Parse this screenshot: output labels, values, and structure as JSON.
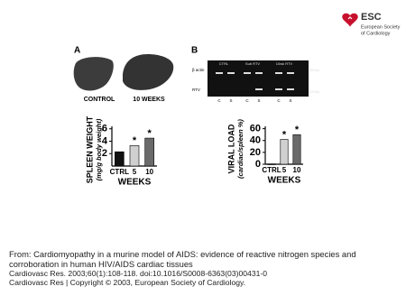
{
  "logo": {
    "abbr": "ESC",
    "line1": "European Society",
    "line2": "of Cardiology"
  },
  "figure": {
    "panel_a": {
      "letter": "A",
      "label_left": "CONTROL",
      "label_right": "10 WEEKS"
    },
    "panel_b": {
      "letter": "B",
      "row1": "β actin",
      "row2": "RTV",
      "group1": "CTRL",
      "group2": "Sub RTV",
      "group3": "10wk RTV",
      "size1": "500bp",
      "size2": "220bp",
      "lanes": [
        "C",
        "S",
        "C",
        "S",
        "C",
        "S"
      ]
    }
  },
  "chart_data": [
    {
      "type": "bar",
      "ylabel": "SPLEEN WEIGHT",
      "ylabel_units": "(mg/g body weight)",
      "xlabel": "WEEKS",
      "categories": [
        "CTRL",
        "5",
        "10"
      ],
      "values": [
        2.3,
        3.3,
        4.5
      ],
      "colors": [
        "#111111",
        "#d0d0d0",
        "#6a6a6a"
      ],
      "significance": [
        null,
        "*",
        "*"
      ],
      "ylim": [
        0,
        6.4
      ],
      "yticks": [
        2,
        4,
        6
      ]
    },
    {
      "type": "bar",
      "ylabel": "VIRAL LOAD",
      "ylabel_units": "(cardiac/spleen %)",
      "xlabel": "WEEKS",
      "categories": [
        "CTRL",
        "5",
        "10"
      ],
      "values": [
        0.5,
        42,
        50
      ],
      "colors": [
        "#111111",
        "#d0d0d0",
        "#6a6a6a"
      ],
      "significance": [
        null,
        "*",
        "*"
      ],
      "ylim": [
        0,
        64
      ],
      "yticks": [
        0,
        20,
        40,
        60
      ]
    }
  ],
  "caption": {
    "from": "From: Cardiomyopathy in a murine model of AIDS: evidence of reactive nitrogen species and corroboration in human HIV/AIDS cardiac tissues",
    "citation": "Cardiovasc Res. 2003;60(1):108-118. doi:10.1016/S0008-6363(03)00431-0",
    "copyright": "Cardiovasc Res | Copyright © 2003, European Society of Cardiology."
  }
}
